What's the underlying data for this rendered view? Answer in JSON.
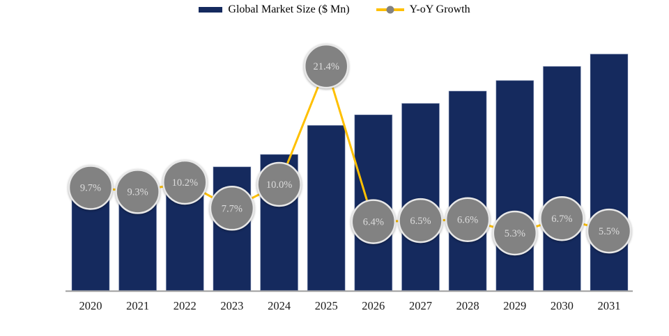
{
  "legend": {
    "market_size_label": "Global Market Size ($ Mn)",
    "growth_label": "Y-oY Growth"
  },
  "colors": {
    "bar_fill": "#152a5e",
    "bar_edge": "#9aa7c7",
    "line_gold": "#FFC000",
    "bubble_fill": "#828282",
    "bubble_border": "#e8e8e8",
    "bubble_text": "#dcdcdc",
    "axis_line": "#9c9c9c",
    "axis_label": "#1a1a1a",
    "background": "#ffffff"
  },
  "chart_data": {
    "type": "bar",
    "subtype": "combo-bar-line",
    "title": "",
    "xlabel": "",
    "ylabel": "",
    "grid": false,
    "legend_position": "top-center",
    "categories": [
      "2020",
      "2021",
      "2022",
      "2023",
      "2024",
      "2025",
      "2026",
      "2027",
      "2028",
      "2029",
      "2030",
      "2031"
    ],
    "series": [
      {
        "name": "Global Market Size ($ Mn)",
        "type": "bar",
        "values_relative": [
          100,
          109.3,
          120.4,
          129.7,
          142.7,
          173.2,
          184.3,
          196.3,
          209.2,
          220.3,
          235.1,
          248.0
        ]
      },
      {
        "name": "Y-oY Growth",
        "type": "line",
        "values_pct": [
          9.7,
          9.3,
          10.2,
          7.7,
          10.0,
          21.4,
          6.4,
          6.5,
          6.6,
          5.3,
          6.7,
          5.5
        ],
        "labels": [
          "9.7%",
          "9.3%",
          "10.2%",
          "7.7%",
          "10.0%",
          "21.4%",
          "6.4%",
          "6.5%",
          "6.6%",
          "5.3%",
          "6.7%",
          "5.5%"
        ]
      }
    ],
    "note": "No numeric value axis is shown in the image; bar values are relative heights estimated from pixels with 2020 = 100 (consistent with the labeled Y-oY growth rates)."
  }
}
